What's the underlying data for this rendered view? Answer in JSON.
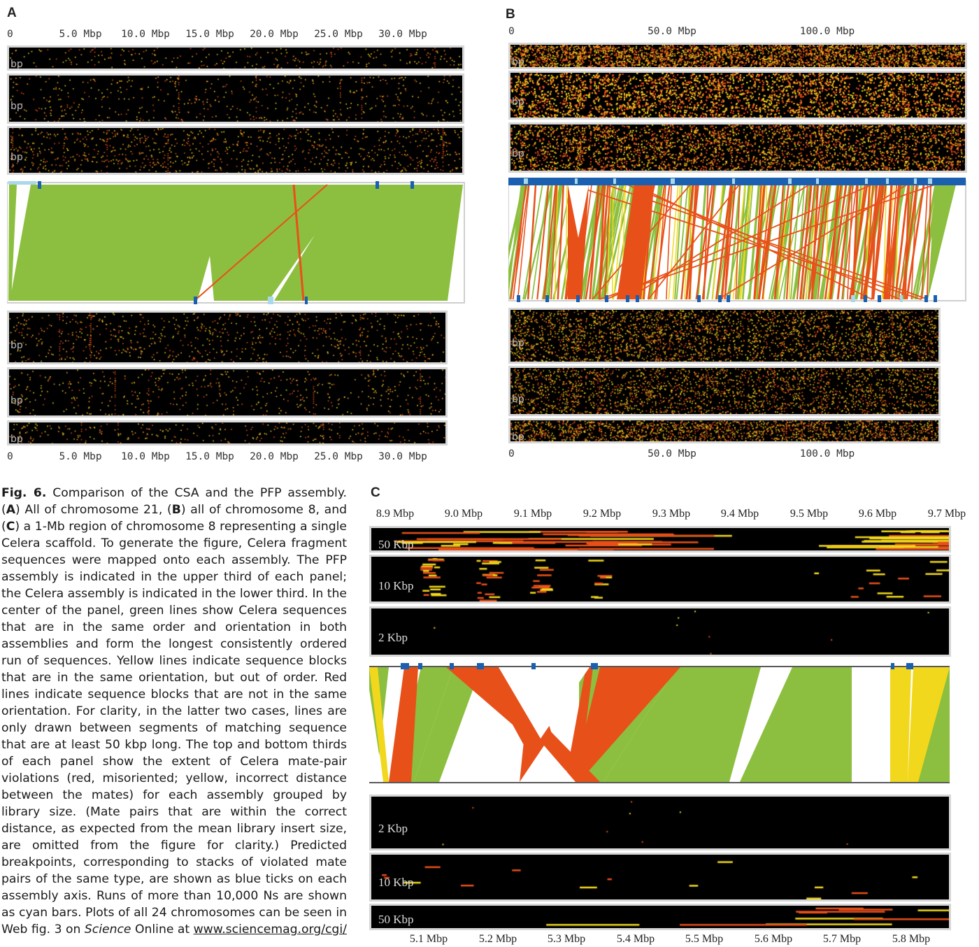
{
  "panel_a": {
    "letter": "A",
    "axis_top": [
      "0",
      "5.0 Mbp",
      "10.0 Mbp",
      "15.0 Mbp",
      "20.0 Mbp",
      "25.0 Mbp",
      "30.0 Mbp"
    ],
    "axis_bottom": [
      "0",
      "5.0 Mbp",
      "10.0 Mbp",
      "15.0 Mbp",
      "20.0 Mbp",
      "25.0 Mbp",
      "30.0 Mbp"
    ],
    "strip_labels": [
      "bp",
      "bp",
      "bp",
      "bp",
      "bp",
      "bp"
    ]
  },
  "panel_b": {
    "letter": "B",
    "axis_top": [
      "0",
      "50.0 Mbp",
      "100.0 Mbp"
    ],
    "axis_bottom": [
      "0",
      "50.0 Mbp",
      "100.0 Mbp"
    ],
    "strip_labels": [
      "bp",
      "bp",
      "bp",
      "bp",
      "bp",
      "bp"
    ]
  },
  "panel_c": {
    "letter": "C",
    "axis_top": [
      "8.9 Mbp",
      "9.0 Mbp",
      "9.1 Mbp",
      "9.2 Mbp",
      "9.3 Mbp",
      "9.4 Mbp",
      "9.5 Mbp",
      "9.6 Mbp",
      "9.7 Mbp"
    ],
    "axis_bottom": [
      "5.1 Mbp",
      "5.2 Mbp",
      "5.3 Mbp",
      "5.4 Mbp",
      "5.5 Mbp",
      "5.6 Mbp",
      "5.7 Mbp",
      "5.8 Mbp"
    ],
    "strip_labels_top": [
      "50 Kbp",
      "10 Kbp",
      "2 Kbp"
    ],
    "strip_labels_bottom": [
      "2 Kbp",
      "10 Kbp",
      "50 Kbp"
    ]
  },
  "colors": {
    "order_green": "#8cbf3f",
    "out_of_order_yellow": "#f2d81c",
    "misoriented_red": "#e8501a",
    "breakpoint_blue": "#1a5fb0",
    "ns_cyan": "#a8d8ea"
  },
  "caption": {
    "fig_label": "Fig. 6.",
    "title": "Comparison of the CSA and the PFP assembly.",
    "text_1": "(",
    "ref_a": "A",
    "text_2": ") All of chromosome 21, (",
    "ref_b": "B",
    "text_3": ") all of chromosome 8, and (",
    "ref_c": "C",
    "text_4": ") a 1-Mb region of chromosome 8 representing a single Celera scaffold. To generate the figure, Celera fragment sequences were mapped onto each assembly. The PFP assembly is indicated in the upper third of each panel; the Celera assembly is indicated in the lower third. In the center of the panel, green lines show Celera sequences that are in the same order and orientation in both assemblies and form the longest consistently ordered run of sequences. Yellow lines indicate sequence blocks that are in the same orientation, but out of order. Red lines indicate sequence blocks that are not in the same orientation. For clarity, in the latter two cases, lines are only drawn between segments of matching sequence that are at least 50 kbp long. The top and bottom thirds of each panel show the extent of Celera mate-pair violations (red, misoriented; yellow, incorrect distance between the mates) for each assembly grouped by library size. (Mate pairs that are within the correct distance, as expected from the mean library insert size, are omitted from the figure for clarity.) Predicted breakpoints, corresponding to stacks of violated mate pairs of the same type, are shown as blue ticks on each assembly axis. Runs of more than 10,000 Ns are shown as cyan bars. Plots of all 24 chromosomes can be seen in Web fig. 3 on ",
    "journal": "Science",
    "text_5": " Online at ",
    "url": "www.sciencemag.org/cgi/"
  }
}
